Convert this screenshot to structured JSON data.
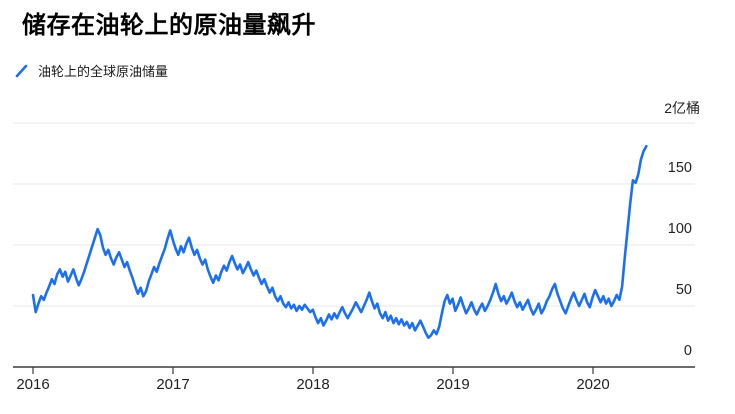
{
  "title": "储存在油轮上的原油量飙升",
  "legend": {
    "label": "油轮上的全球原油储量",
    "marker_color": "#1d6ff2"
  },
  "colors": {
    "line": "#1d6ff2",
    "grid": "#e7e7e7",
    "axis": "#3a3a3a",
    "tick_label": "#222222",
    "background": "#ffffff"
  },
  "chart_data": {
    "type": "line",
    "title": "储存在油轮上的原油量飙升",
    "unit_label": "2亿桶",
    "unit_value": 200,
    "ylim": [
      0,
      200
    ],
    "y_tick_values": [
      0,
      50,
      100,
      150
    ],
    "y_tick_labels": [
      "0",
      "50",
      "100",
      "150"
    ],
    "x_tick_labels": [
      "2016",
      "2017",
      "2018",
      "2019",
      "2020"
    ],
    "x_tick_years": [
      2016,
      2017,
      2018,
      2019,
      2020
    ],
    "grid": "horizontal",
    "legend_position": "top-left",
    "series": [
      {
        "name": "油轮上的全球原油储量",
        "color": "#1d6ff2",
        "x_start_year": 2016,
        "x_interval": "weekly",
        "values": [
          59,
          45,
          52,
          58,
          55,
          61,
          66,
          72,
          68,
          76,
          80,
          74,
          78,
          70,
          75,
          80,
          73,
          67,
          72,
          78,
          85,
          92,
          99,
          106,
          113,
          108,
          98,
          92,
          96,
          89,
          84,
          90,
          94,
          88,
          82,
          86,
          79,
          73,
          66,
          60,
          65,
          58,
          62,
          70,
          76,
          82,
          78,
          85,
          91,
          97,
          105,
          112,
          104,
          97,
          92,
          99,
          94,
          101,
          106,
          98,
          92,
          96,
          89,
          84,
          88,
          80,
          74,
          69,
          75,
          71,
          78,
          83,
          79,
          86,
          91,
          85,
          80,
          84,
          77,
          81,
          86,
          80,
          75,
          79,
          73,
          68,
          72,
          66,
          61,
          65,
          58,
          54,
          58,
          52,
          49,
          53,
          48,
          51,
          46,
          50,
          47,
          51,
          48,
          45,
          47,
          41,
          36,
          40,
          34,
          38,
          43,
          39,
          44,
          40,
          45,
          49,
          44,
          40,
          44,
          48,
          53,
          49,
          45,
          50,
          55,
          61,
          54,
          48,
          52,
          44,
          40,
          45,
          38,
          42,
          36,
          40,
          35,
          39,
          34,
          37,
          32,
          36,
          30,
          34,
          38,
          33,
          28,
          24,
          26,
          30,
          27,
          33,
          44,
          54,
          59,
          52,
          56,
          46,
          51,
          57,
          50,
          44,
          48,
          53,
          47,
          43,
          48,
          52,
          46,
          50,
          55,
          61,
          68,
          60,
          54,
          58,
          52,
          56,
          61,
          54,
          49,
          53,
          47,
          51,
          55,
          48,
          43,
          47,
          52,
          44,
          48,
          54,
          58,
          64,
          68,
          60,
          54,
          48,
          44,
          50,
          56,
          61,
          55,
          50,
          55,
          60,
          53,
          49,
          57,
          63,
          58,
          53,
          58,
          52,
          56,
          50,
          54,
          59,
          55,
          66,
          90,
          112,
          134,
          153,
          151,
          158,
          170,
          177,
          181
        ]
      }
    ]
  }
}
